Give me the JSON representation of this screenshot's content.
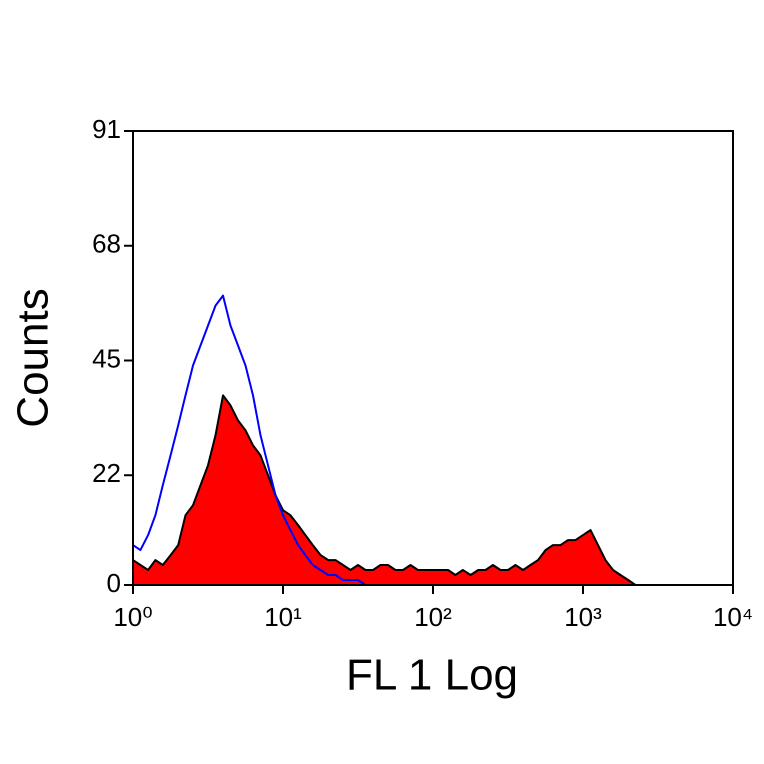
{
  "chart_data": {
    "type": "histogram",
    "xlabel": "FL 1 Log",
    "ylabel": "Counts",
    "xscale": "log",
    "xlim": [
      1,
      10000
    ],
    "xticks": [
      {
        "value": 1,
        "label": "10⁰"
      },
      {
        "value": 10,
        "label": "10¹"
      },
      {
        "value": 100,
        "label": "10²"
      },
      {
        "value": 1000,
        "label": "10³"
      },
      {
        "value": 10000,
        "label": "10⁴"
      }
    ],
    "ylim": [
      0,
      91
    ],
    "yticks": [
      0,
      22,
      45,
      68,
      91
    ],
    "x": [
      1,
      1.12,
      1.26,
      1.41,
      1.58,
      1.78,
      2,
      2.24,
      2.51,
      2.82,
      3.16,
      3.55,
      3.98,
      4.47,
      5.01,
      5.62,
      6.31,
      7.08,
      7.94,
      8.91,
      10,
      11.2,
      12.6,
      14.1,
      15.8,
      17.8,
      20,
      22.4,
      25.1,
      28.2,
      31.6,
      35.5,
      39.8,
      44.7,
      50.1,
      56.2,
      63.1,
      70.8,
      79.4,
      89.1,
      100,
      112,
      126,
      141,
      158,
      178,
      200,
      224,
      251,
      282,
      316,
      355,
      398,
      447,
      501,
      562,
      631,
      708,
      794,
      891,
      1000,
      1122,
      1259,
      1413,
      1585,
      1778,
      2000,
      2239
    ],
    "series": [
      {
        "color": "#ff0000",
        "edgecolor": "#000000",
        "filled": true,
        "values": [
          5,
          4,
          3,
          5,
          4,
          6,
          8,
          14,
          16,
          20,
          24,
          30,
          38,
          36,
          33,
          31,
          28,
          26,
          22,
          18,
          15,
          14,
          12,
          10,
          8,
          6,
          5,
          5,
          4,
          3,
          4,
          3,
          3,
          4,
          4,
          3,
          3,
          4,
          3,
          3,
          3,
          3,
          3,
          2,
          3,
          2,
          3,
          3,
          4,
          3,
          3,
          4,
          3,
          4,
          5,
          7,
          8,
          8,
          9,
          9,
          10,
          11,
          8,
          5,
          3,
          2,
          1,
          0
        ]
      },
      {
        "color": "#0000ff",
        "filled": false,
        "values": [
          8,
          7,
          10,
          14,
          20,
          26,
          32,
          38,
          44,
          48,
          52,
          56,
          58,
          52,
          48,
          44,
          38,
          30,
          24,
          18,
          14,
          11,
          8,
          6,
          4,
          3,
          2,
          2,
          1,
          1,
          1,
          0,
          null,
          null,
          null,
          null,
          null,
          null,
          null,
          null,
          null,
          null,
          null,
          null,
          null,
          null,
          null,
          null,
          null,
          null,
          null,
          null,
          null,
          null,
          null,
          null,
          null,
          null,
          null,
          null,
          null,
          null,
          null,
          null,
          null,
          null,
          null,
          null
        ]
      }
    ]
  }
}
